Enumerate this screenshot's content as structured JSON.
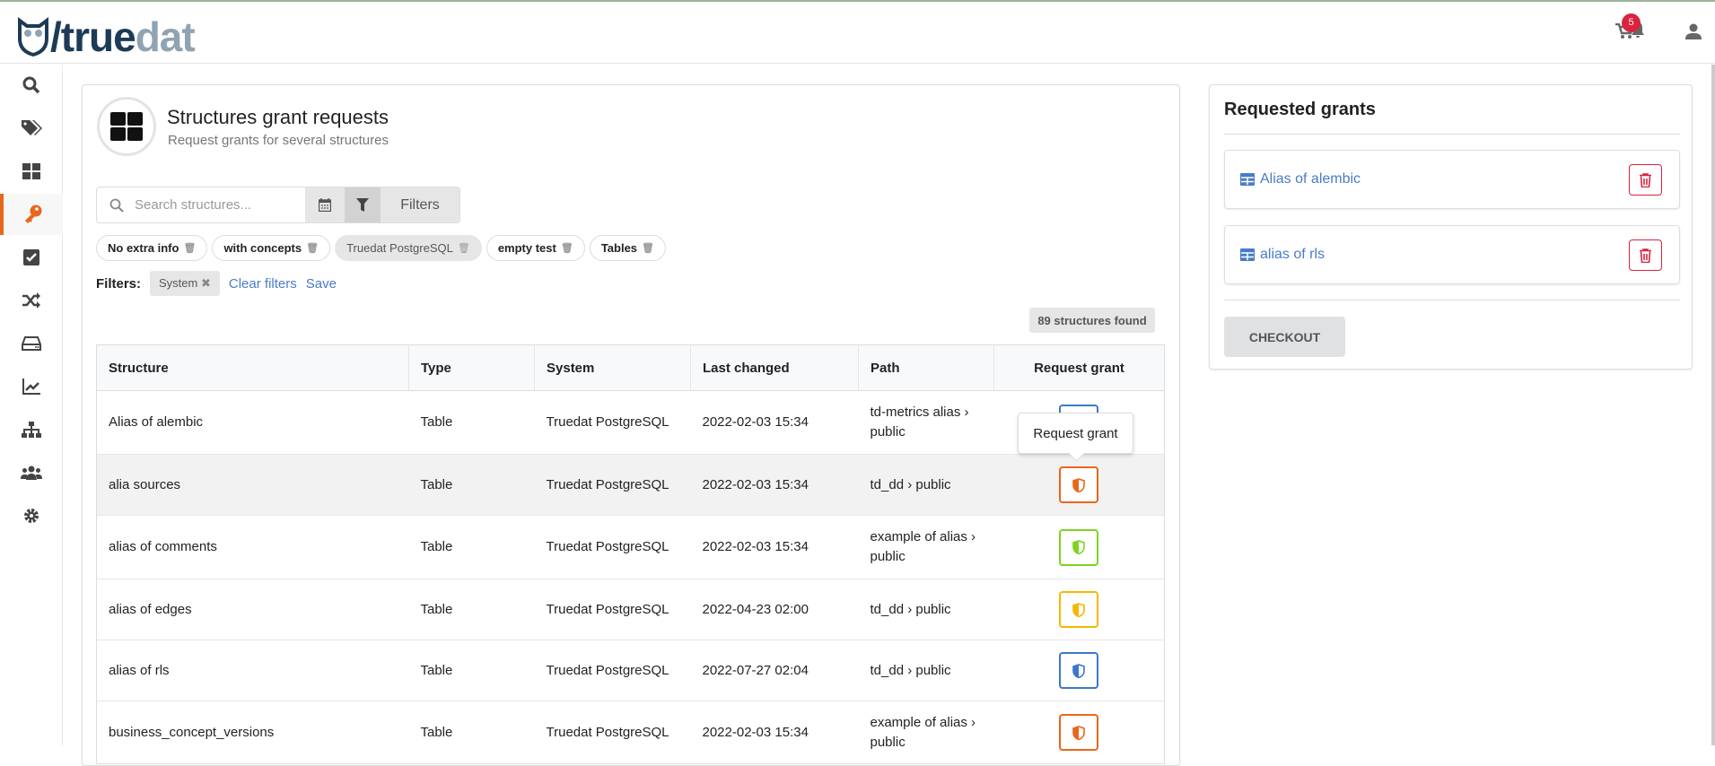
{
  "header": {
    "logo": {
      "part1": "/true",
      "part2": "dat"
    },
    "cart_count": "5"
  },
  "sidebar": {
    "items": [
      {
        "icon": "search-icon"
      },
      {
        "icon": "tags-icon"
      },
      {
        "icon": "grid-icon"
      },
      {
        "icon": "key-icon",
        "active": true
      },
      {
        "icon": "checkbox-icon"
      },
      {
        "icon": "shuffle-icon"
      },
      {
        "icon": "storage-icon"
      },
      {
        "icon": "chart-line-icon"
      },
      {
        "icon": "sitemap-icon"
      },
      {
        "icon": "users-icon"
      },
      {
        "icon": "gear-icon"
      }
    ]
  },
  "main": {
    "title": "Structures grant requests",
    "subtitle": "Request grants for several structures",
    "search": {
      "placeholder": "Search structures...",
      "filters_label": "Filters"
    },
    "chips": [
      {
        "label": "No extra info"
      },
      {
        "label": "with concepts"
      },
      {
        "label": "Truedat PostgreSQL",
        "selected": true
      },
      {
        "label": "empty test"
      },
      {
        "label": "Tables"
      }
    ],
    "filters": {
      "label": "Filters:",
      "active": "System",
      "clear": "Clear filters",
      "save": "Save"
    },
    "found": "89 structures found",
    "table": {
      "headers": [
        "Structure",
        "Type",
        "System",
        "Last changed",
        "Path",
        "Request grant"
      ],
      "rows": [
        {
          "structure": "Alias of alembic",
          "type": "Table",
          "system": "Truedat PostgreSQL",
          "last_changed": "2022-02-03 15:34",
          "path": "td-metrics alias › public",
          "color": "#3b78c9"
        },
        {
          "structure": "alia sources",
          "type": "Table",
          "system": "Truedat PostgreSQL",
          "last_changed": "2022-02-03 15:34",
          "path": "td_dd › public",
          "color": "#e8671c"
        },
        {
          "structure": "alias of comments",
          "type": "Table",
          "system": "Truedat PostgreSQL",
          "last_changed": "2022-02-03 15:34",
          "path": "example of alias › public",
          "color": "#7ed321"
        },
        {
          "structure": "alias of edges",
          "type": "Table",
          "system": "Truedat PostgreSQL",
          "last_changed": "2022-04-23 02:00",
          "path": "td_dd › public",
          "color": "#f5b800"
        },
        {
          "structure": "alias of rls",
          "type": "Table",
          "system": "Truedat PostgreSQL",
          "last_changed": "2022-07-27 02:04",
          "path": "td_dd › public",
          "color": "#3b78c9"
        },
        {
          "structure": "business_concept_versions",
          "type": "Table",
          "system": "Truedat PostgreSQL",
          "last_changed": "2022-02-03 15:34",
          "path": "example of alias › public",
          "color": "#e8671c"
        }
      ]
    },
    "tooltip": "Request grant"
  },
  "requested": {
    "title": "Requested grants",
    "items": [
      {
        "label": "Alias of alembic"
      },
      {
        "label": "alias of rls"
      }
    ],
    "checkout": "CHECKOUT"
  },
  "colors": {
    "accent": "#e8671c",
    "link": "#4a7bc8",
    "danger": "#db2340"
  }
}
